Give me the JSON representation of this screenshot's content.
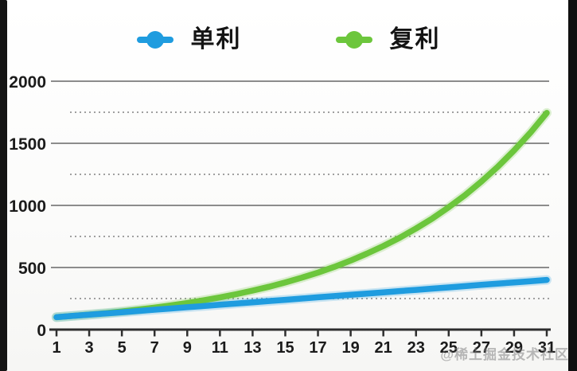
{
  "page": {
    "background": "#fbfbfa",
    "edge_bar_color": "#141414"
  },
  "legend": {
    "items": [
      {
        "label": "单利",
        "color": "#1f9cdf"
      },
      {
        "label": "复利",
        "color": "#6cc63c"
      }
    ]
  },
  "watermark": "@稀土掘金技术社区",
  "axis_style": {
    "axis_color": "#2e2e2e",
    "label_color": "#1b1b1b",
    "grid_major_color": "#8c8c8c",
    "grid_minor_color": "#a0a0a0"
  },
  "chart_data": {
    "type": "line",
    "title": "",
    "xlabel": "",
    "ylabel": "",
    "legend_position": "top-center",
    "grid": {
      "major": "solid",
      "minor": "dotted"
    },
    "xlim": [
      1,
      31
    ],
    "ylim": [
      0,
      2000
    ],
    "x_tick_labels": [
      "1",
      "3",
      "5",
      "7",
      "9",
      "11",
      "13",
      "15",
      "17",
      "19",
      "21",
      "23",
      "25",
      "27",
      "29",
      "31"
    ],
    "x_ticks": [
      1,
      3,
      5,
      7,
      9,
      11,
      13,
      15,
      17,
      19,
      21,
      23,
      25,
      27,
      29,
      31
    ],
    "y_ticks": [
      0,
      500,
      1000,
      1500,
      2000
    ],
    "y_minor_gridlines": [
      250,
      750,
      1250,
      1750
    ],
    "x": [
      1,
      2,
      3,
      4,
      5,
      6,
      7,
      8,
      9,
      10,
      11,
      12,
      13,
      14,
      15,
      16,
      17,
      18,
      19,
      20,
      21,
      22,
      23,
      24,
      25,
      26,
      27,
      28,
      29,
      30,
      31
    ],
    "series": [
      {
        "name": "单利",
        "color": "#1f9cdf",
        "values": [
          100,
          110,
          120,
          130,
          140,
          150,
          160,
          170,
          180,
          190,
          200,
          210,
          220,
          230,
          240,
          250,
          260,
          270,
          280,
          290,
          300,
          310,
          320,
          330,
          340,
          350,
          360,
          370,
          380,
          390,
          400
        ]
      },
      {
        "name": "复利",
        "color": "#6cc63c",
        "values": [
          100,
          110,
          121,
          133,
          146,
          161,
          177,
          195,
          214,
          236,
          259,
          285,
          314,
          345,
          380,
          418,
          459,
          505,
          556,
          612,
          673,
          740,
          814,
          895,
          985,
          1083,
          1192,
          1311,
          1442,
          1586,
          1745
        ]
      }
    ]
  }
}
